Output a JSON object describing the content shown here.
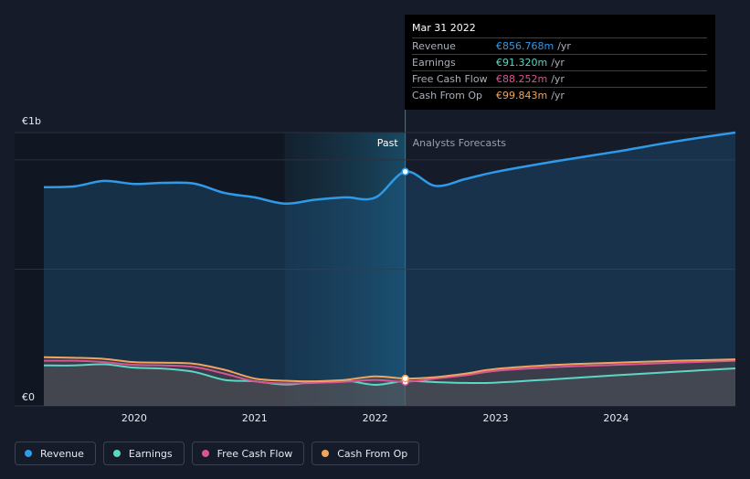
{
  "tooltip": {
    "date": "Mar 31 2022",
    "rows": [
      {
        "name": "Revenue",
        "value": "€856.768m",
        "unit": "/yr",
        "color": "#2f9ae8"
      },
      {
        "name": "Earnings",
        "value": "€91.320m",
        "unit": "/yr",
        "color": "#5ed6c4"
      },
      {
        "name": "Free Cash Flow",
        "value": "€88.252m",
        "unit": "/yr",
        "color": "#d95495"
      },
      {
        "name": "Cash From Op",
        "value": "€99.843m",
        "unit": "/yr",
        "color": "#f0a55b"
      }
    ]
  },
  "legend": [
    {
      "label": "Revenue",
      "color": "#2f9ae8"
    },
    {
      "label": "Earnings",
      "color": "#5ed6c4"
    },
    {
      "label": "Free Cash Flow",
      "color": "#d95495"
    },
    {
      "label": "Cash From Op",
      "color": "#f0a55b"
    }
  ],
  "chart_data": {
    "type": "line",
    "title": "",
    "xlabel": "",
    "ylabel": "",
    "y_tick_labels": [
      "€0",
      "€1b"
    ],
    "y_tick_values": [
      0,
      1000
    ],
    "ylim": [
      0,
      1000
    ],
    "xlim": [
      2019.25,
      2024.99
    ],
    "x_ticks": [
      {
        "value": 2020,
        "label": "2020"
      },
      {
        "value": 2021,
        "label": "2021"
      },
      {
        "value": 2022,
        "label": "2022"
      },
      {
        "value": 2023,
        "label": "2023"
      },
      {
        "value": 2024,
        "label": "2024"
      }
    ],
    "past_label": "Past",
    "forecast_label": "Analysts Forecasts",
    "past_shade_start": 2021.25,
    "divider": 2022.25,
    "highlight_x": 2022.25,
    "grid": true,
    "series": [
      {
        "name": "Revenue",
        "color": "#2f9ae8",
        "x": [
          2019.25,
          2019.5,
          2019.75,
          2020.0,
          2020.25,
          2020.5,
          2020.75,
          2021.0,
          2021.25,
          2021.5,
          2021.75,
          2022.0,
          2022.25,
          2022.5,
          2022.75,
          2023.0,
          2023.5,
          2024.0,
          2024.5,
          2024.99
        ],
        "y": [
          800,
          803,
          823,
          812,
          816,
          813,
          779,
          763,
          740,
          754,
          763,
          762,
          857,
          805,
          830,
          856,
          895,
          930,
          968,
          1000
        ]
      },
      {
        "name": "Earnings",
        "color": "#5ed6c4",
        "x": [
          2019.25,
          2019.5,
          2019.75,
          2020.0,
          2020.25,
          2020.5,
          2020.75,
          2021.0,
          2021.25,
          2021.5,
          2021.75,
          2022.0,
          2022.25,
          2022.5,
          2022.75,
          2023.0,
          2023.5,
          2024.0,
          2024.5,
          2024.99
        ],
        "y": [
          148,
          148,
          152,
          140,
          136,
          124,
          95,
          90,
          78,
          88,
          93,
          77,
          91,
          87,
          84,
          85,
          98,
          112,
          125,
          137
        ]
      },
      {
        "name": "Free Cash Flow",
        "color": "#d95495",
        "x": [
          2019.25,
          2019.5,
          2019.75,
          2020.0,
          2020.25,
          2020.5,
          2020.75,
          2021.0,
          2021.25,
          2021.5,
          2021.75,
          2022.0,
          2022.25,
          2022.5,
          2022.75,
          2023.0,
          2023.5,
          2024.0,
          2024.5,
          2024.99
        ],
        "y": [
          165,
          165,
          160,
          150,
          148,
          142,
          118,
          90,
          82,
          84,
          88,
          95,
          88,
          100,
          112,
          128,
          142,
          150,
          158,
          165
        ]
      },
      {
        "name": "Cash From Op",
        "color": "#f0a55b",
        "x": [
          2019.25,
          2019.5,
          2019.75,
          2020.0,
          2020.25,
          2020.5,
          2020.75,
          2021.0,
          2021.25,
          2021.5,
          2021.75,
          2022.0,
          2022.25,
          2022.5,
          2022.75,
          2023.0,
          2023.5,
          2024.0,
          2024.5,
          2024.99
        ],
        "y": [
          178,
          176,
          172,
          160,
          158,
          154,
          132,
          100,
          92,
          90,
          95,
          108,
          100,
          105,
          118,
          135,
          150,
          158,
          165,
          170
        ]
      }
    ]
  }
}
